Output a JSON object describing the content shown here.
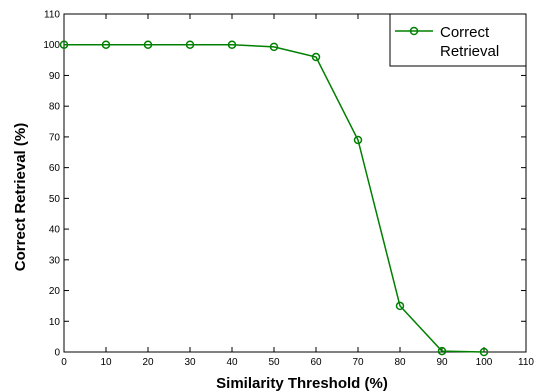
{
  "chart_data": {
    "type": "line",
    "xlabel": "Similarity Threshold (%)",
    "ylabel": "Correct Retrieval (%)",
    "xlim": [
      0,
      110
    ],
    "ylim": [
      0,
      110
    ],
    "xticks": [
      0,
      10,
      20,
      30,
      40,
      50,
      60,
      70,
      80,
      90,
      100,
      110
    ],
    "yticks": [
      0,
      10,
      20,
      30,
      40,
      50,
      60,
      70,
      80,
      90,
      100,
      110
    ],
    "grid": false,
    "legend_position": "top-right",
    "series": [
      {
        "name": "Correct Retrieval",
        "color": "#008000",
        "marker": "circle-open",
        "x": [
          0,
          10,
          20,
          30,
          40,
          50,
          60,
          70,
          80,
          90,
          100
        ],
        "y": [
          100,
          100,
          100,
          100,
          100,
          99.3,
          96,
          69,
          15,
          0.3,
          0
        ]
      }
    ]
  }
}
